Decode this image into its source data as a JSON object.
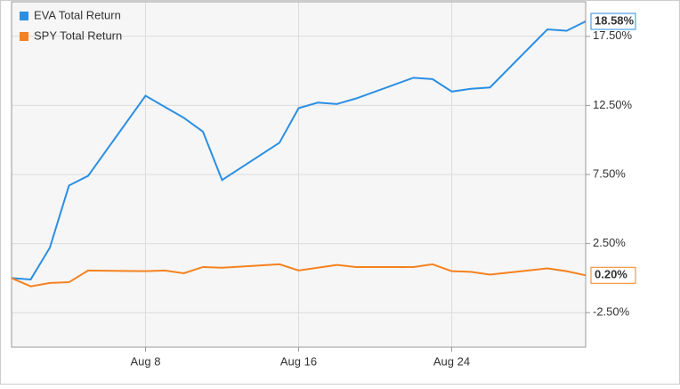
{
  "chart_data": {
    "type": "line",
    "x": [
      1,
      2,
      3,
      4,
      5,
      8,
      9,
      10,
      11,
      12,
      15,
      16,
      17,
      18,
      19,
      22,
      23,
      24,
      25,
      26,
      29,
      30,
      31
    ],
    "xlim": [
      1,
      31
    ],
    "xticks": [
      {
        "value": 8,
        "label": "Aug 8"
      },
      {
        "value": 16,
        "label": "Aug 16"
      },
      {
        "value": 24,
        "label": "Aug 24"
      }
    ],
    "ylim": [
      -5,
      20
    ],
    "yticks": [
      {
        "value": -2.5,
        "label": "-2.50%"
      },
      {
        "value": 2.5,
        "label": "2.50%"
      },
      {
        "value": 7.5,
        "label": "7.50%"
      },
      {
        "value": 12.5,
        "label": "12.50%"
      },
      {
        "value": 17.5,
        "label": "17.50%"
      }
    ],
    "grid": true,
    "legend": "top-left",
    "series": [
      {
        "name": "EVA Total Return",
        "color": "#2b8fe3",
        "values": [
          0.0,
          -0.1,
          2.2,
          6.7,
          7.4,
          13.2,
          12.4,
          11.6,
          10.6,
          7.1,
          9.8,
          12.3,
          12.7,
          12.6,
          13.0,
          14.5,
          14.4,
          13.5,
          13.7,
          13.8,
          18.0,
          17.9,
          18.58
        ],
        "value_labels": [
          null,
          null,
          null,
          null,
          null,
          null,
          null,
          null,
          null,
          null,
          null,
          null,
          null,
          null,
          null,
          null,
          null,
          null,
          null,
          null,
          null,
          null,
          "18.58%"
        ]
      },
      {
        "name": "SPY Total Return",
        "color": "#f5821f",
        "values": [
          0.0,
          -0.6,
          -0.35,
          -0.3,
          0.55,
          0.5,
          0.55,
          0.35,
          0.8,
          0.75,
          1.0,
          0.55,
          0.75,
          0.95,
          0.8,
          0.8,
          1.0,
          0.5,
          0.45,
          0.25,
          0.7,
          0.5,
          0.2
        ],
        "value_labels": [
          null,
          null,
          null,
          null,
          null,
          null,
          null,
          null,
          null,
          null,
          null,
          null,
          null,
          null,
          null,
          null,
          null,
          null,
          null,
          null,
          null,
          null,
          "0.20%"
        ]
      }
    ]
  }
}
